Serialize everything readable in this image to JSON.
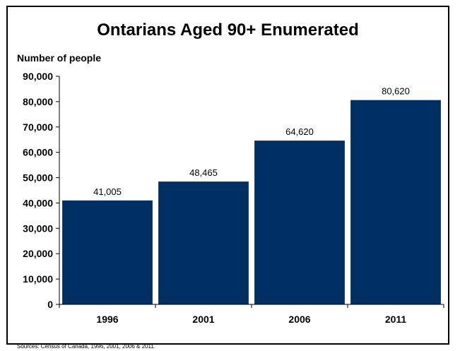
{
  "chart_data": {
    "type": "bar",
    "title": "Ontarians Aged 90+ Enumerated",
    "ylabel": "Number of people",
    "xlabel": "",
    "categories": [
      "1996",
      "2001",
      "2006",
      "2011"
    ],
    "values": [
      41005,
      48465,
      64620,
      80620
    ],
    "value_labels": [
      "41,005",
      "48,465",
      "64,620",
      "80,620"
    ],
    "ylim": [
      0,
      90000
    ],
    "yticks": [
      0,
      10000,
      20000,
      30000,
      40000,
      50000,
      60000,
      70000,
      80000,
      90000
    ],
    "ytick_labels": [
      "0",
      "10,000",
      "20,000",
      "30,000",
      "40,000",
      "50,000",
      "60,000",
      "70,000",
      "80,000",
      "90,000"
    ],
    "bar_color": "#003063",
    "grid": false,
    "legend": "none"
  },
  "footer": {
    "source": "Sources: Census of Canada, 1996, 2001, 2006 & 2011."
  }
}
